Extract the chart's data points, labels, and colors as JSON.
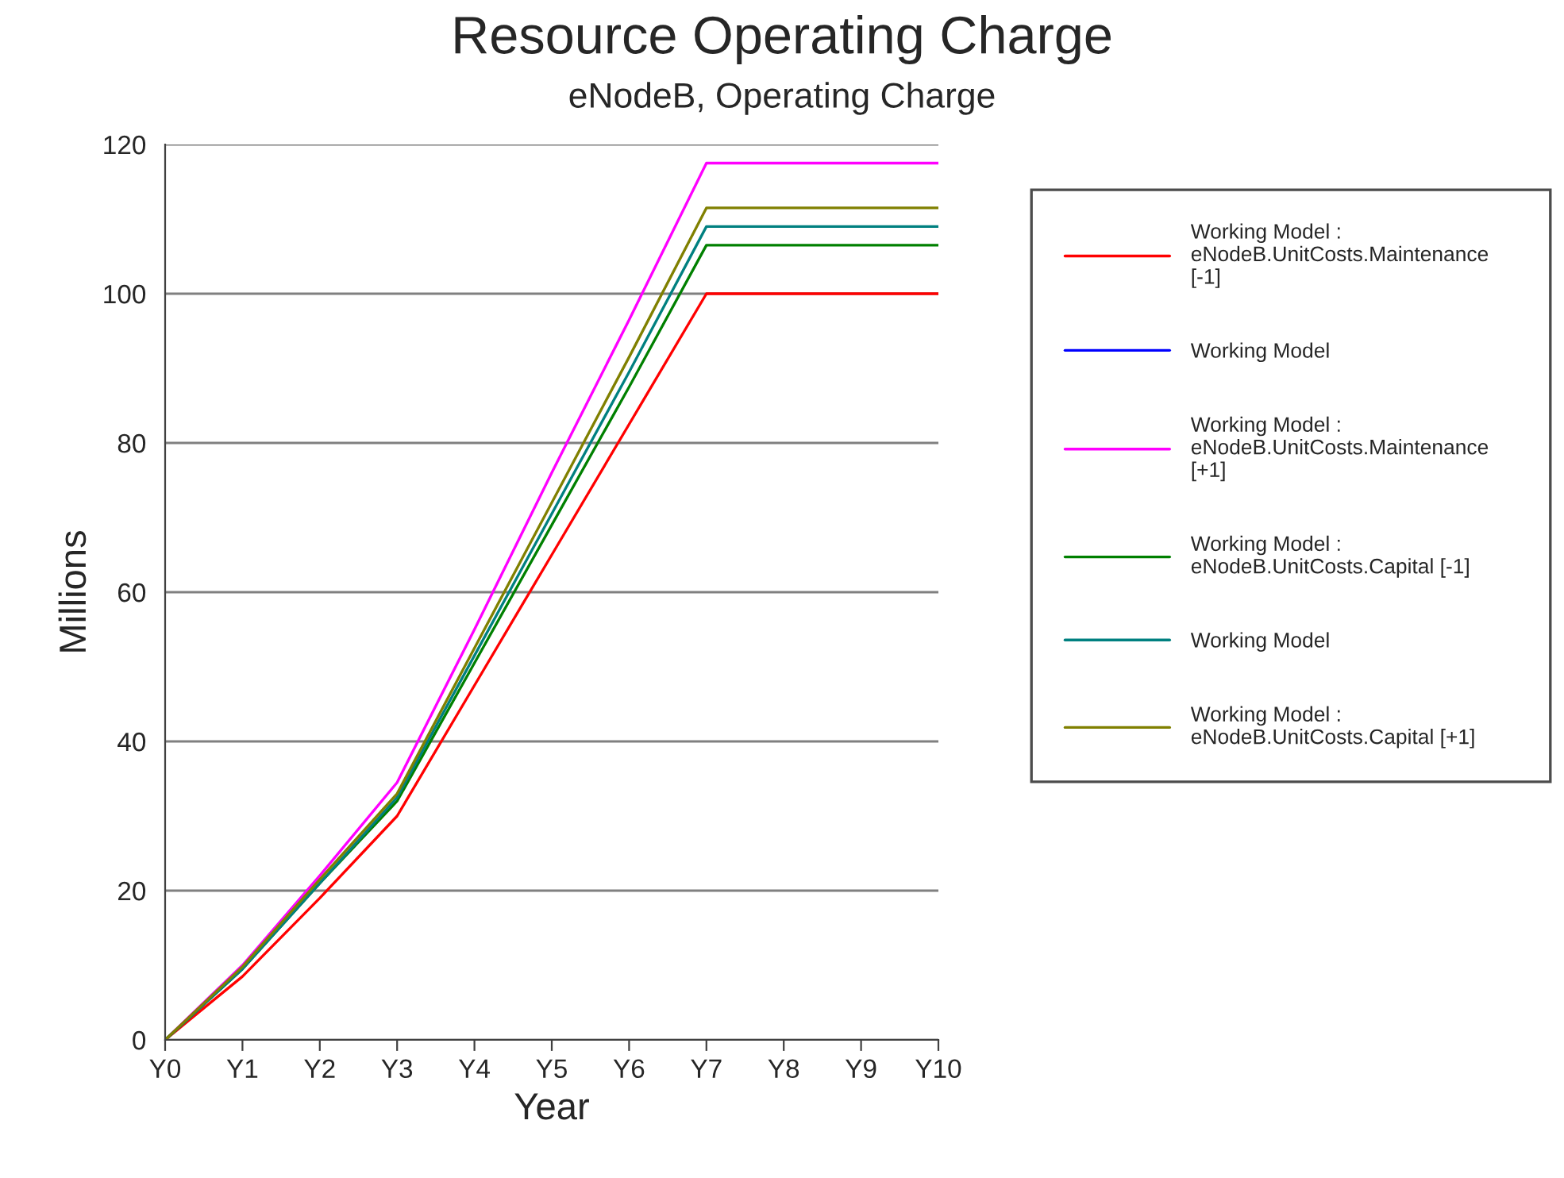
{
  "chart_data": {
    "type": "line",
    "title": "Resource Operating Charge",
    "subtitle": "eNodeB, Operating Charge",
    "xlabel": "Year",
    "ylabel": "Millions",
    "categories": [
      "Y0",
      "Y1",
      "Y2",
      "Y3",
      "Y4",
      "Y5",
      "Y6",
      "Y7",
      "Y8",
      "Y9",
      "Y10"
    ],
    "series": [
      {
        "name": "Working Model :\neNodeB.UnitCosts.Maintenance\n[-1]",
        "color": "#ff0000",
        "values": [
          0,
          8.5,
          19,
          30,
          47.5,
          65,
          82.5,
          100,
          100,
          100,
          100
        ]
      },
      {
        "name": "Working Model",
        "color": "#0000ff",
        "values": [
          null,
          null,
          null,
          null,
          null,
          null,
          null,
          null,
          null,
          null,
          null
        ]
      },
      {
        "name": "Working Model :\neNodeB.UnitCosts.Maintenance\n[+1]",
        "color": "#ff00ff",
        "values": [
          0,
          10,
          22,
          34.5,
          55,
          76,
          96.5,
          117.5,
          117.5,
          117.5,
          117.5
        ]
      },
      {
        "name": "Working Model :\neNodeB.UnitCosts.Capital [-1]",
        "color": "#008000",
        "values": [
          0,
          9.5,
          21,
          32,
          50.5,
          69,
          87.5,
          106.5,
          106.5,
          106.5,
          106.5
        ]
      },
      {
        "name": "Working Model",
        "color": "#008080",
        "values": [
          0,
          9.5,
          21,
          32.5,
          51.5,
          70.5,
          89.5,
          109,
          109,
          109,
          109
        ]
      },
      {
        "name": "Working Model :\neNodeB.UnitCosts.Capital [+1]",
        "color": "#808000",
        "values": [
          0,
          9.8,
          21.5,
          33,
          52.5,
          72,
          91.5,
          111.5,
          111.5,
          111.5,
          111.5
        ]
      }
    ],
    "ylim": [
      0,
      120
    ],
    "yticks": [
      0,
      20,
      40,
      60,
      80,
      100,
      120
    ],
    "grid": "y",
    "legend": "right",
    "marker": "none",
    "line_style": "solid"
  }
}
